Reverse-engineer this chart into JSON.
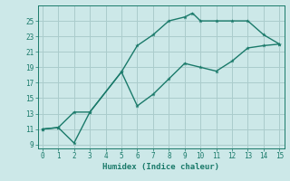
{
  "xlabel": "Humidex (Indice chaleur)",
  "background_color": "#cce8e8",
  "grid_color": "#aacccc",
  "line_color": "#1a7a6a",
  "line1_x": [
    0,
    1,
    2,
    3,
    5,
    6,
    7,
    8,
    9,
    9.5,
    10,
    11,
    12,
    13,
    14,
    15
  ],
  "line1_y": [
    11,
    11.2,
    13.2,
    13.2,
    18.4,
    21.8,
    23.2,
    25.0,
    25.5,
    26.0,
    25.0,
    25.0,
    25.0,
    25.0,
    23.2,
    22.0
  ],
  "line2_x": [
    0,
    1,
    2,
    3,
    5,
    6,
    7,
    8,
    9,
    10,
    11,
    12,
    13,
    14,
    15
  ],
  "line2_y": [
    11,
    11.2,
    9.2,
    13.2,
    18.4,
    14.0,
    15.5,
    17.5,
    19.5,
    19.0,
    18.5,
    19.8,
    21.5,
    21.8,
    22.0
  ],
  "xlim": [
    -0.3,
    15.3
  ],
  "ylim": [
    8.5,
    27
  ],
  "xticks": [
    0,
    1,
    2,
    3,
    4,
    5,
    6,
    7,
    8,
    9,
    10,
    11,
    12,
    13,
    14,
    15
  ],
  "yticks": [
    9,
    11,
    13,
    15,
    17,
    19,
    21,
    23,
    25
  ]
}
